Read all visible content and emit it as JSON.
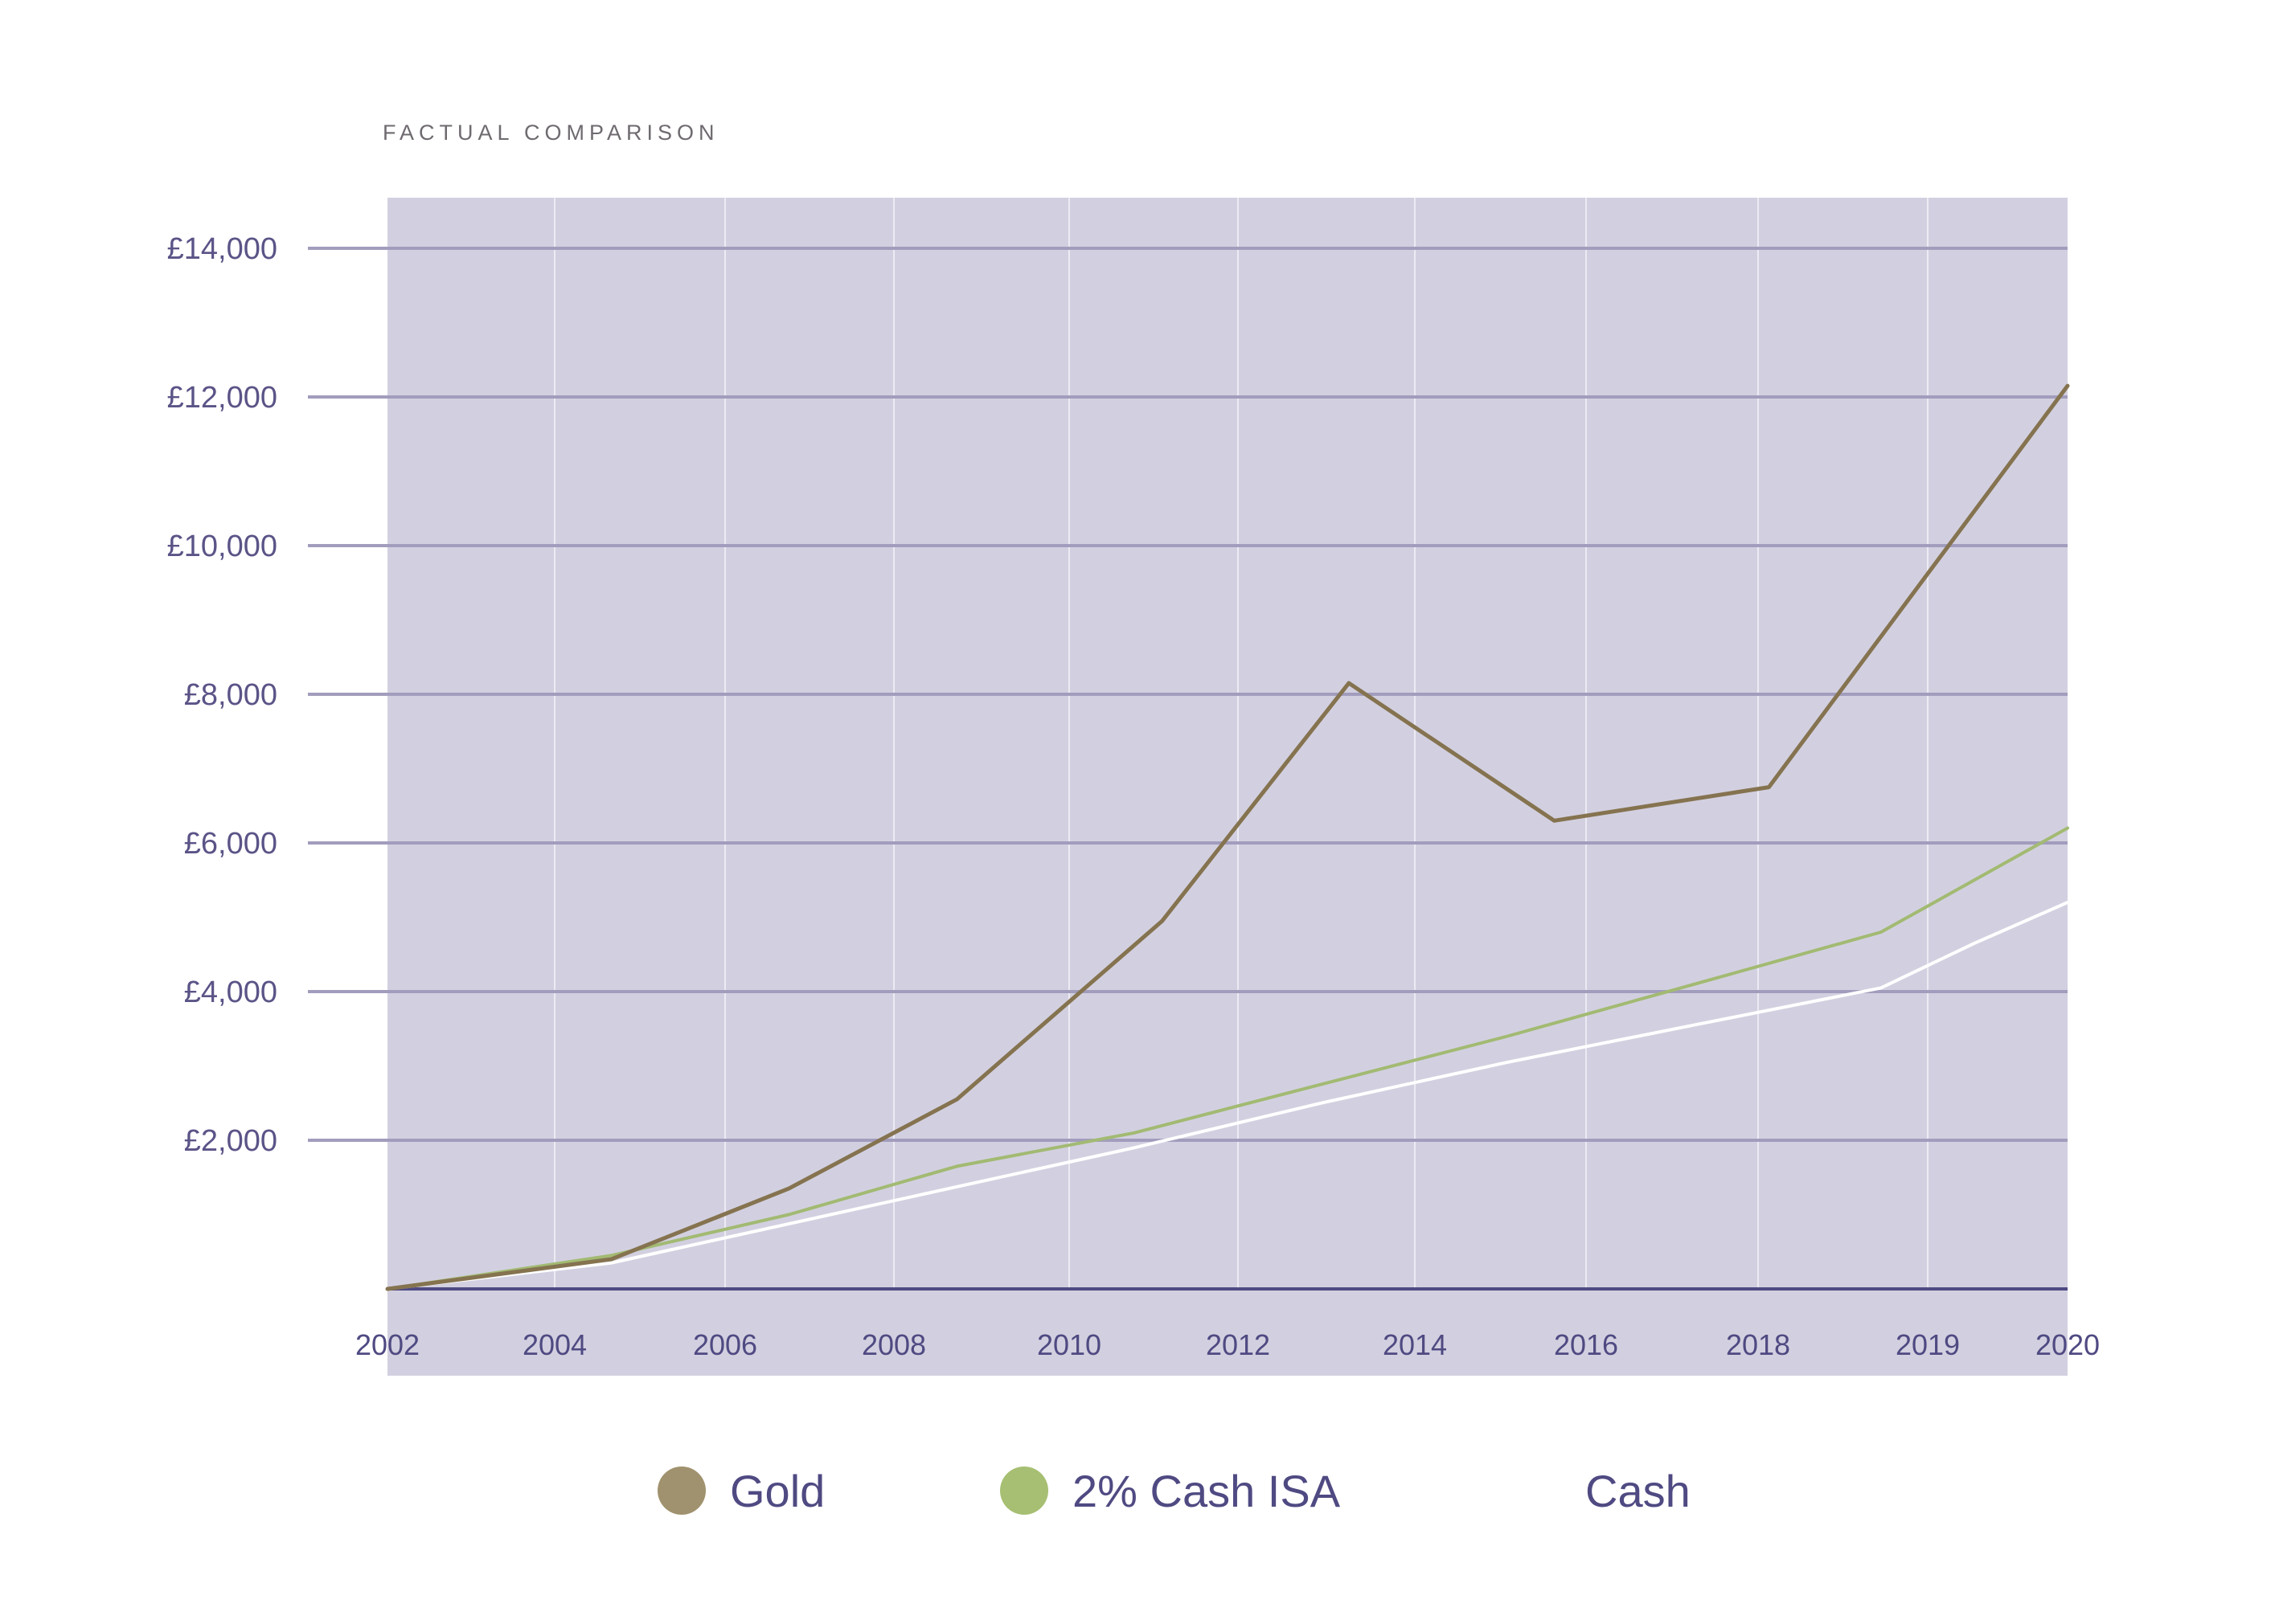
{
  "header": {
    "subtitle": "FACTUAL COMPARISON"
  },
  "colors": {
    "plot_background": "#d2d0e0",
    "horizontal_grid": "#a29dbd",
    "vertical_grid": "#ecebf3",
    "baseline": "#4f4a82",
    "gold": "#857350",
    "gold_legend": "#a0926e",
    "cash_isa": "#a2ba72",
    "cash_isa_legend": "#a6bf72",
    "cash": "#ffffff"
  },
  "legend": {
    "items": [
      {
        "label": "Gold",
        "color": "#a0926e",
        "icon": "filled-circle"
      },
      {
        "label": "2% Cash ISA",
        "color": "#a6bf72",
        "icon": "filled-circle"
      },
      {
        "label": "Cash",
        "color": "#ffffff",
        "icon": "filled-circle"
      }
    ]
  },
  "chart_data": {
    "type": "line",
    "title": "",
    "xlabel": "",
    "ylabel": "",
    "x_ticks": [
      "2002",
      "2004",
      "2006",
      "2008",
      "2010",
      "2012",
      "2014",
      "2016",
      "2018",
      "2019",
      "2020"
    ],
    "y_ticks": [
      "£2,000",
      "£4,000",
      "£6,000",
      "£8,000",
      "£10,000",
      "£12,000",
      "£14,000"
    ],
    "ylim": [
      0,
      14700
    ],
    "grid": {
      "horizontal": true,
      "vertical": true
    },
    "legend_position": "bottom",
    "series": [
      {
        "name": "Gold",
        "color": "#857350",
        "points": [
          {
            "x": 2002.0,
            "y": 0
          },
          {
            "x": 2004.4,
            "y": 400
          },
          {
            "x": 2006.3,
            "y": 1350
          },
          {
            "x": 2008.1,
            "y": 2550
          },
          {
            "x": 2010.3,
            "y": 4950
          },
          {
            "x": 2012.3,
            "y": 8150
          },
          {
            "x": 2014.5,
            "y": 6300
          },
          {
            "x": 2016.8,
            "y": 6750
          },
          {
            "x": 2020.0,
            "y": 12150
          }
        ]
      },
      {
        "name": "2% Cash ISA",
        "color": "#a2ba72",
        "points": [
          {
            "x": 2002.0,
            "y": 0
          },
          {
            "x": 2004.4,
            "y": 450
          },
          {
            "x": 2006.3,
            "y": 1000
          },
          {
            "x": 2008.1,
            "y": 1650
          },
          {
            "x": 2010.0,
            "y": 2100
          },
          {
            "x": 2012.0,
            "y": 2750
          },
          {
            "x": 2014.0,
            "y": 3400
          },
          {
            "x": 2016.0,
            "y": 4100
          },
          {
            "x": 2018.0,
            "y": 4800
          },
          {
            "x": 2019.0,
            "y": 5500
          },
          {
            "x": 2020.0,
            "y": 6200
          }
        ]
      },
      {
        "name": "Cash",
        "color": "#ffffff",
        "points": [
          {
            "x": 2002.0,
            "y": 0
          },
          {
            "x": 2004.4,
            "y": 350
          },
          {
            "x": 2010.0,
            "y": 1900
          },
          {
            "x": 2012.0,
            "y": 2500
          },
          {
            "x": 2014.0,
            "y": 3050
          },
          {
            "x": 2016.0,
            "y": 3550
          },
          {
            "x": 2018.0,
            "y": 4050
          },
          {
            "x": 2019.0,
            "y": 4650
          },
          {
            "x": 2020.0,
            "y": 5200
          }
        ]
      }
    ]
  }
}
